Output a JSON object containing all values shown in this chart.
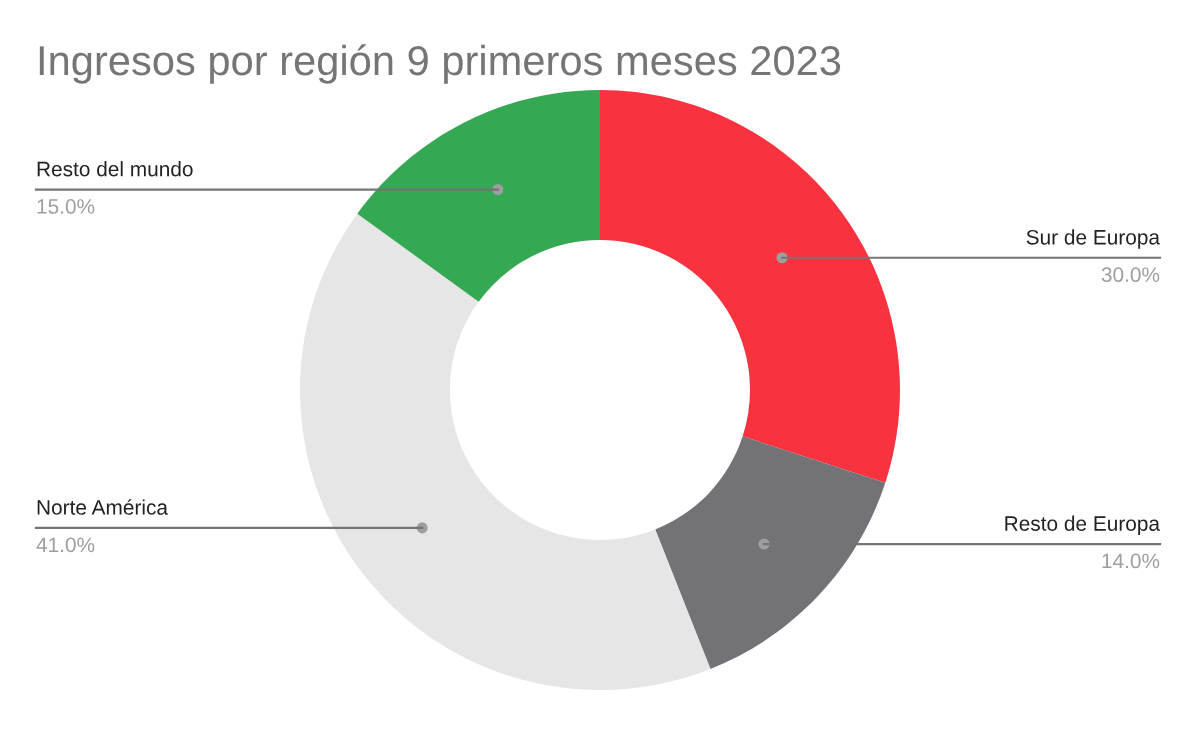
{
  "chart_data": {
    "type": "donut",
    "title": "Ingresos por región 9 primeros meses 2023",
    "categories": [
      "Sur de Europa",
      "Resto de Europa",
      "Norte América",
      "Resto del mundo"
    ],
    "values": [
      30,
      14,
      41,
      15
    ],
    "colors": [
      "#f8323f",
      "#737276",
      "#e6e6e6",
      "#34a853"
    ],
    "value_labels": [
      "30.0%",
      "14.0%",
      "41.0%",
      "15.0%"
    ],
    "legend": false
  }
}
